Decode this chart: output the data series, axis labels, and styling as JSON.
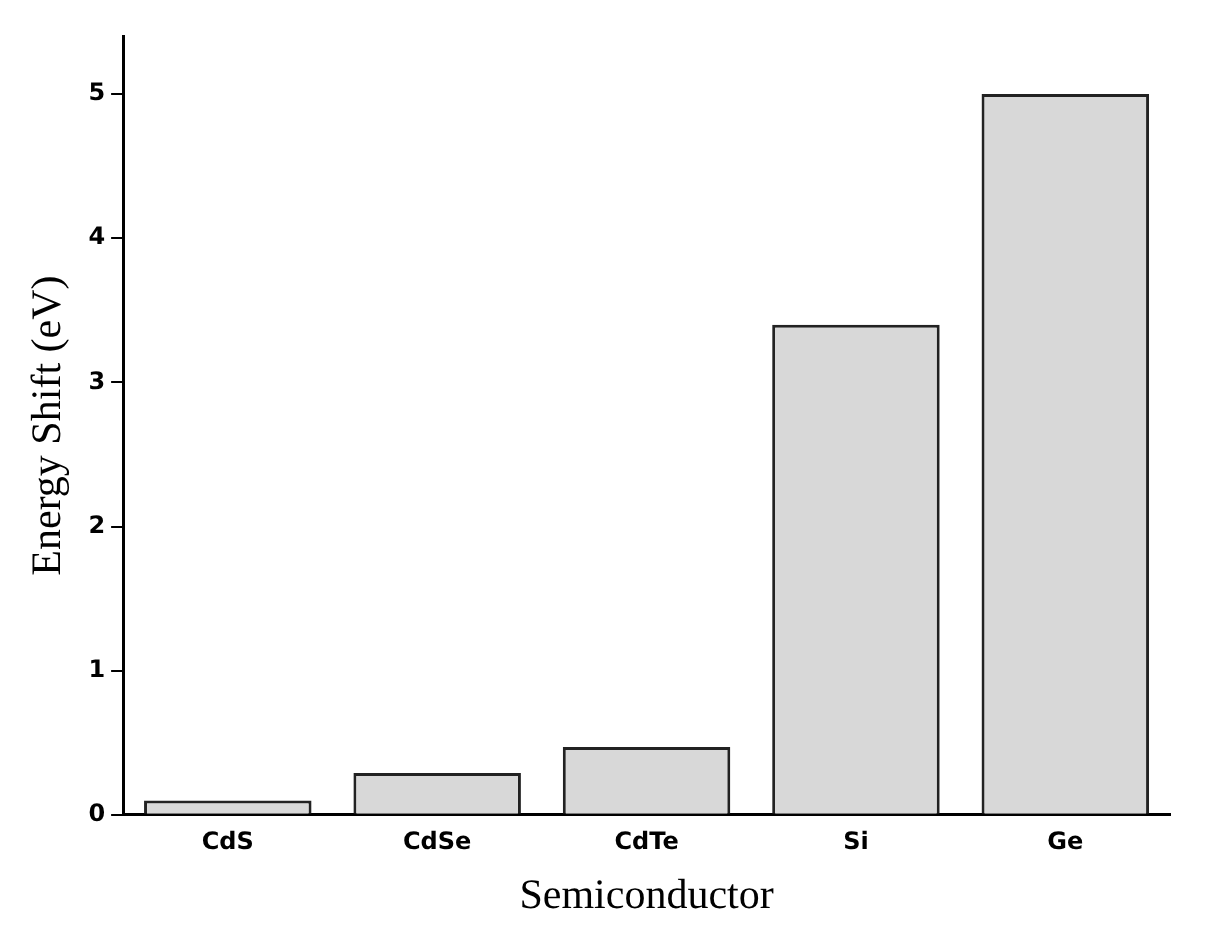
{
  "chart_data": {
    "type": "bar",
    "xlabel": "Semiconductor",
    "ylabel": "Energy Shift (eV)",
    "categories": [
      "CdS",
      "CdSe",
      "CdTe",
      "Si",
      "Ge"
    ],
    "values": [
      0.1,
      0.29,
      0.47,
      3.4,
      5.0
    ],
    "color": "#d8d8d8",
    "ylim": [
      0,
      5.4
    ],
    "yticks": [
      0,
      1,
      2,
      3,
      4,
      5
    ],
    "grid": false,
    "legend": false
  }
}
